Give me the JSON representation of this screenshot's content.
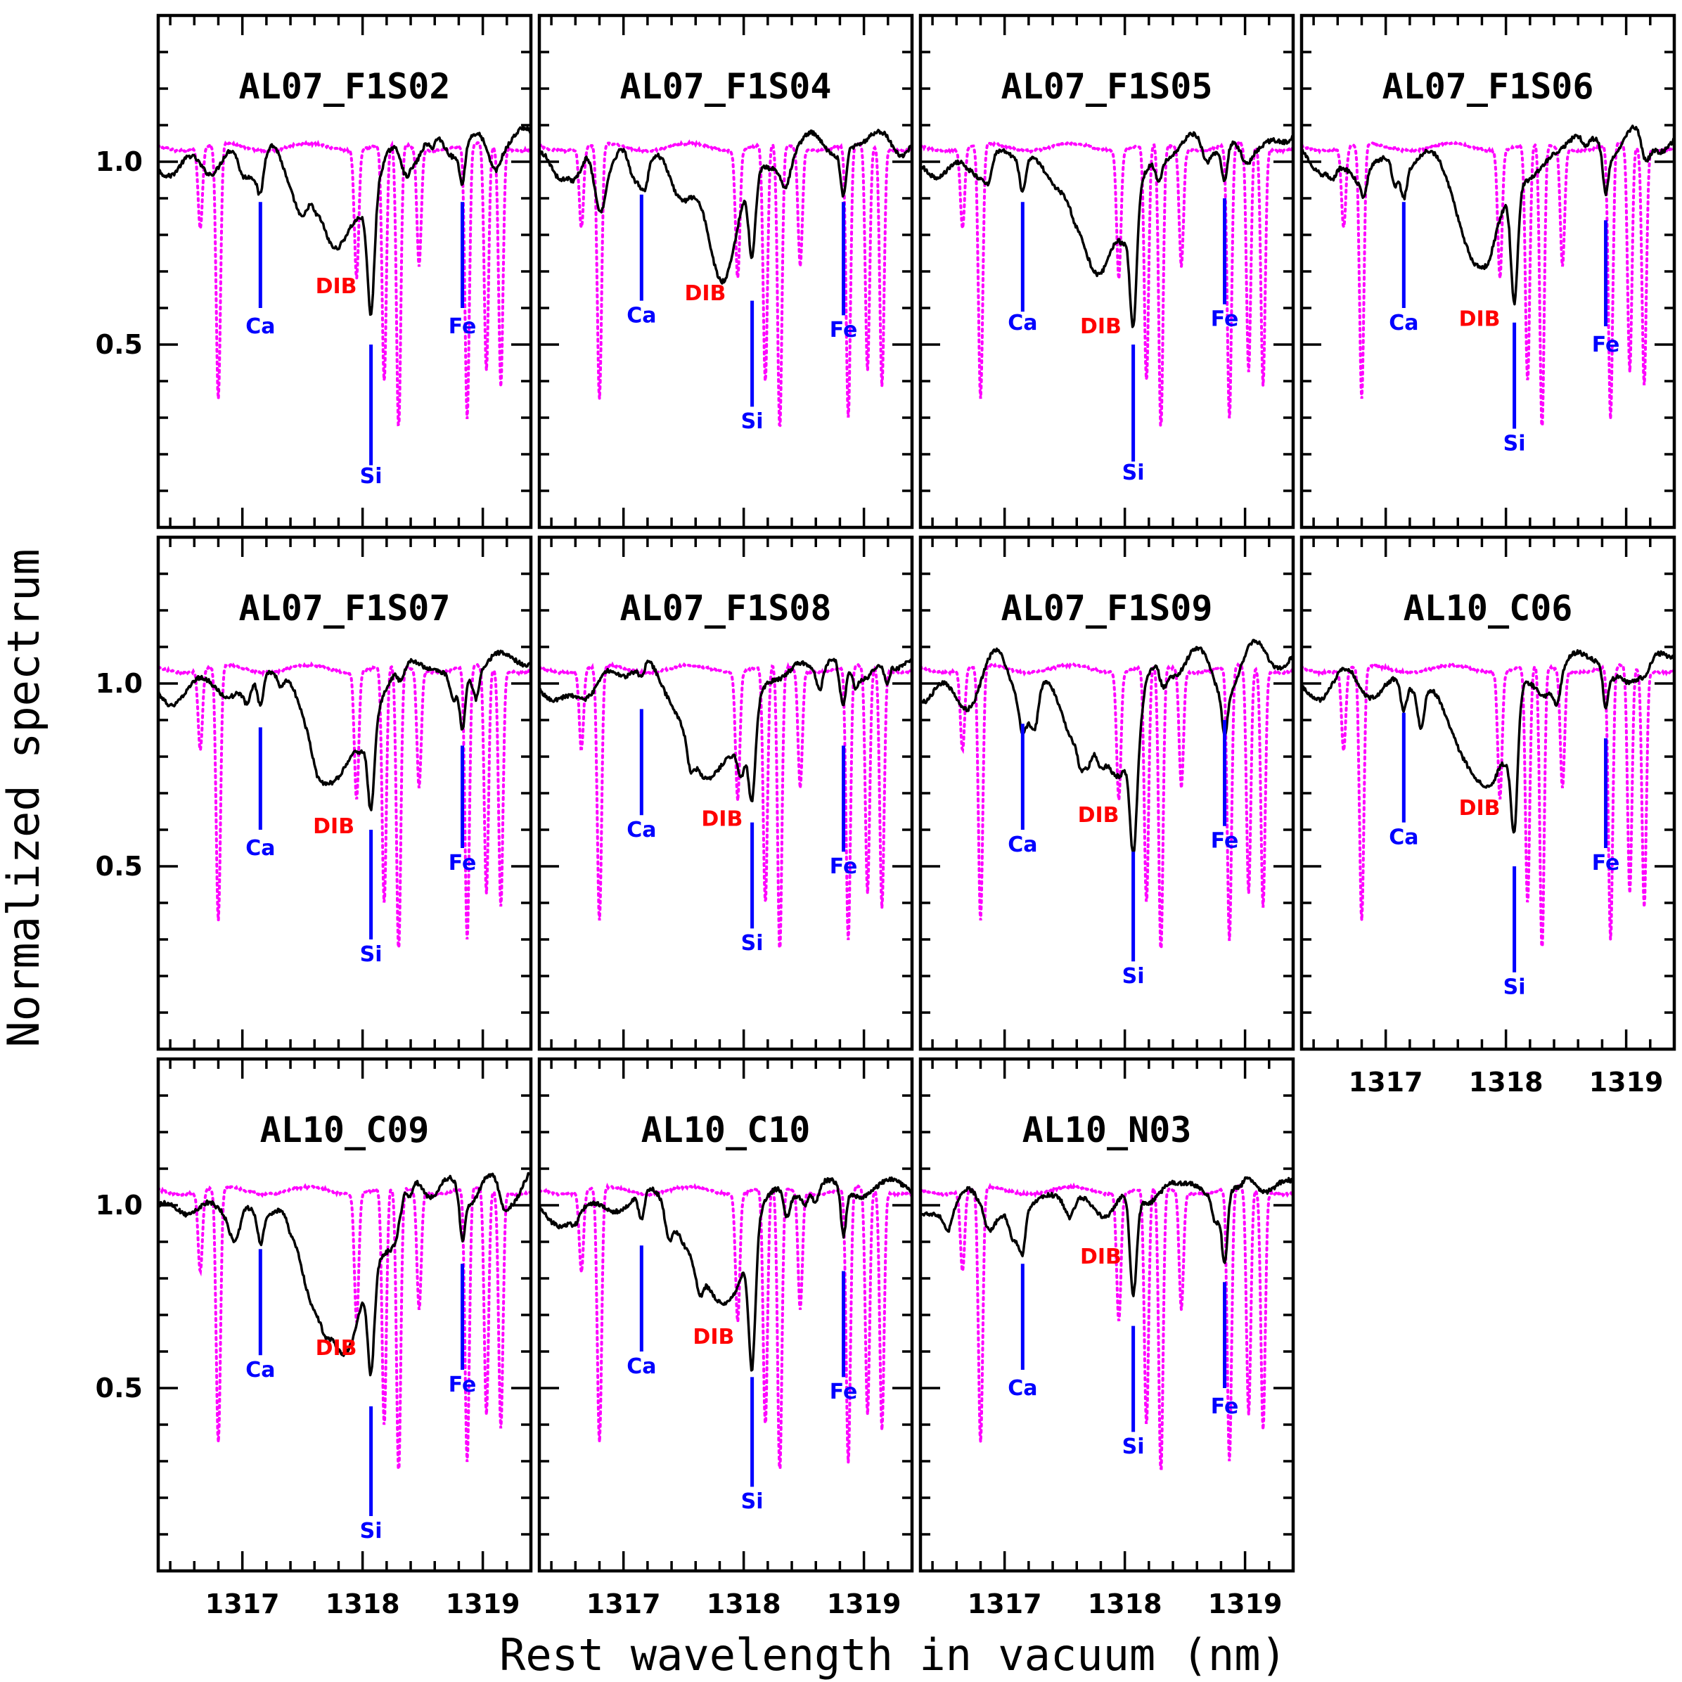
{
  "chart_data": {
    "type": "line",
    "layout": "small-multiples 4x3",
    "xlabel": "Rest wavelength in vacuum (nm)",
    "ylabel": "Normalized spectrum",
    "xlim": [
      1316.3,
      1319.4
    ],
    "ylim": [
      0.0,
      1.4
    ],
    "x_ticks": [
      1317,
      1318,
      1319
    ],
    "y_ticks": [
      0.5,
      1.0
    ],
    "y_tick_labels": [
      "0.5",
      "1.0"
    ],
    "x_tick_labels": [
      "1317",
      "1318",
      "1319"
    ],
    "series_styles": {
      "observed": {
        "color": "#000000",
        "style": "solid"
      },
      "telluric": {
        "color": "#ff00ff",
        "style": "dotted"
      }
    },
    "label_colors": {
      "Ca": "#0000ff",
      "Si": "#0000ff",
      "Fe": "#0000ff",
      "DIB": "#ff0000"
    },
    "line_positions": {
      "Ca": 1317.15,
      "DIB": 1317.8,
      "Si": 1318.07,
      "Fe": 1318.83
    },
    "telluric_lines": [
      {
        "x": 1316.65,
        "depth": 0.78
      },
      {
        "x": 1316.8,
        "depth": 0.3
      },
      {
        "x": 1317.95,
        "depth": 0.65
      },
      {
        "x": 1318.18,
        "depth": 0.35
      },
      {
        "x": 1318.3,
        "depth": 0.22
      },
      {
        "x": 1318.47,
        "depth": 0.68
      },
      {
        "x": 1318.87,
        "depth": 0.25
      },
      {
        "x": 1319.03,
        "depth": 0.38
      },
      {
        "x": 1319.15,
        "depth": 0.35
      }
    ],
    "panels": [
      {
        "title": "AL07_F1S02",
        "ca_depth": 0.92,
        "dib_depth": 0.76,
        "dib_width": 0.22,
        "si_min": 0.58,
        "fe_depth": 0.91,
        "labels": {
          "Ca": {
            "top": 0.89,
            "bottom": 0.6,
            "text_y": 0.55
          },
          "Si": {
            "top": 0.5,
            "bottom": 0.17,
            "text_y": 0.14
          },
          "Fe": {
            "top": 0.89,
            "bottom": 0.6,
            "text_y": 0.55
          },
          "DIB": {
            "x": 1317.78,
            "text_y": 0.66
          }
        }
      },
      {
        "title": "AL07_F1S04",
        "ca_depth": 0.96,
        "dib_depth": 0.72,
        "dib_width": 0.2,
        "si_min": 0.66,
        "fe_depth": 0.88,
        "labels": {
          "Ca": {
            "top": 0.91,
            "bottom": 0.62,
            "text_y": 0.58
          },
          "Si": {
            "top": 0.62,
            "bottom": 0.33,
            "text_y": 0.29
          },
          "Fe": {
            "top": 0.89,
            "bottom": 0.58,
            "text_y": 0.54
          },
          "DIB": {
            "x": 1317.68,
            "text_y": 0.64
          }
        }
      },
      {
        "title": "AL07_F1S05",
        "ca_depth": 0.91,
        "dib_depth": 0.69,
        "dib_width": 0.2,
        "si_min": 0.53,
        "fe_depth": 0.91,
        "labels": {
          "Ca": {
            "top": 0.89,
            "bottom": 0.59,
            "text_y": 0.56
          },
          "Si": {
            "top": 0.5,
            "bottom": 0.18,
            "text_y": 0.15
          },
          "Fe": {
            "top": 0.9,
            "bottom": 0.61,
            "text_y": 0.57
          },
          "DIB": {
            "x": 1317.8,
            "text_y": 0.55
          }
        }
      },
      {
        "title": "AL07_F1S06",
        "ca_depth": 0.92,
        "dib_depth": 0.7,
        "dib_width": 0.18,
        "si_min": 0.59,
        "fe_depth": 0.89,
        "labels": {
          "Ca": {
            "top": 0.89,
            "bottom": 0.6,
            "text_y": 0.56
          },
          "Si": {
            "top": 0.56,
            "bottom": 0.27,
            "text_y": 0.23
          },
          "Fe": {
            "top": 0.84,
            "bottom": 0.55,
            "text_y": 0.5
          },
          "DIB": {
            "x": 1317.78,
            "text_y": 0.57
          }
        }
      },
      {
        "title": "AL07_F1S07",
        "ca_depth": 0.92,
        "dib_depth": 0.72,
        "dib_width": 0.2,
        "si_min": 0.65,
        "fe_depth": 0.86,
        "labels": {
          "Ca": {
            "top": 0.88,
            "bottom": 0.6,
            "text_y": 0.55
          },
          "Si": {
            "top": 0.6,
            "bottom": 0.3,
            "text_y": 0.26
          },
          "Fe": {
            "top": 0.83,
            "bottom": 0.55,
            "text_y": 0.51
          },
          "DIB": {
            "x": 1317.76,
            "text_y": 0.61
          }
        }
      },
      {
        "title": "AL07_F1S08",
        "ca_depth": 0.96,
        "dib_depth": 0.72,
        "dib_width": 0.2,
        "si_min": 0.66,
        "fe_depth": 0.88,
        "labels": {
          "Ca": {
            "top": 0.93,
            "bottom": 0.64,
            "text_y": 0.6
          },
          "Si": {
            "top": 0.62,
            "bottom": 0.33,
            "text_y": 0.29
          },
          "Fe": {
            "top": 0.83,
            "bottom": 0.54,
            "text_y": 0.5
          },
          "DIB": {
            "x": 1317.82,
            "text_y": 0.63
          }
        }
      },
      {
        "title": "AL07_F1S09",
        "ca_depth": 0.93,
        "dib_depth": 0.72,
        "dib_width": 0.2,
        "si_min": 0.6,
        "fe_depth": 0.9,
        "labels": {
          "Ca": {
            "top": 0.89,
            "bottom": 0.6,
            "text_y": 0.56
          },
          "Si": {
            "top": 0.54,
            "bottom": 0.24,
            "text_y": 0.2
          },
          "Fe": {
            "top": 0.9,
            "bottom": 0.61,
            "text_y": 0.57
          },
          "DIB": {
            "x": 1317.78,
            "text_y": 0.64
          }
        }
      },
      {
        "title": "AL10_C06",
        "ca_depth": 0.92,
        "dib_depth": 0.7,
        "dib_width": 0.2,
        "si_min": 0.55,
        "fe_depth": 0.88,
        "labels": {
          "Ca": {
            "top": 0.92,
            "bottom": 0.62,
            "text_y": 0.58
          },
          "Si": {
            "top": 0.5,
            "bottom": 0.21,
            "text_y": 0.17
          },
          "Fe": {
            "top": 0.85,
            "bottom": 0.55,
            "text_y": 0.51
          },
          "DIB": {
            "x": 1317.78,
            "text_y": 0.66
          }
        }
      },
      {
        "title": "AL10_C09",
        "ca_depth": 0.92,
        "dib_depth": 0.59,
        "dib_width": 0.24,
        "si_min": 0.5,
        "fe_depth": 0.88,
        "labels": {
          "Ca": {
            "top": 0.88,
            "bottom": 0.59,
            "text_y": 0.55
          },
          "Si": {
            "top": 0.45,
            "bottom": 0.15,
            "text_y": 0.11
          },
          "Fe": {
            "top": 0.84,
            "bottom": 0.55,
            "text_y": 0.51
          },
          "DIB": {
            "x": 1317.78,
            "text_y": 0.61
          }
        }
      },
      {
        "title": "AL10_C10",
        "ca_depth": 0.92,
        "dib_depth": 0.72,
        "dib_width": 0.2,
        "si_min": 0.57,
        "fe_depth": 0.87,
        "labels": {
          "Ca": {
            "top": 0.89,
            "bottom": 0.6,
            "text_y": 0.56
          },
          "Si": {
            "top": 0.53,
            "bottom": 0.23,
            "text_y": 0.19
          },
          "Fe": {
            "top": 0.82,
            "bottom": 0.53,
            "text_y": 0.49
          },
          "DIB": {
            "x": 1317.75,
            "text_y": 0.64
          }
        }
      },
      {
        "title": "AL10_N03",
        "ca_depth": 0.89,
        "dib_depth": 0.98,
        "dib_width": 0.14,
        "si_min": 0.72,
        "fe_depth": 0.83,
        "labels": {
          "Ca": {
            "top": 0.84,
            "bottom": 0.55,
            "text_y": 0.5
          },
          "Si": {
            "top": 0.67,
            "bottom": 0.38,
            "text_y": 0.34
          },
          "Fe": {
            "top": 0.79,
            "bottom": 0.5,
            "text_y": 0.45
          },
          "DIB": {
            "x": 1317.8,
            "text_y": 0.86
          }
        }
      }
    ]
  }
}
